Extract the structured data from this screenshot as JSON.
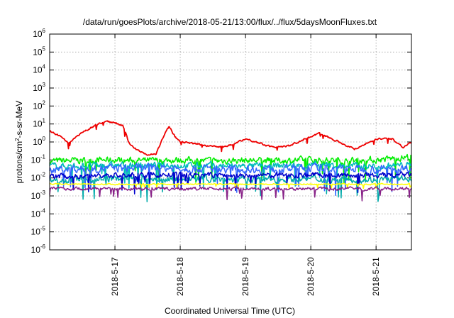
{
  "chart_data": {
    "type": "line",
    "title": "/data/run/goesPlots/archive/2018-05-21/13:00/flux/../flux/5daysMoonFluxes.txt",
    "xlabel": "Coordinated Universal Time (UTC)",
    "ylabel": {
      "prefix": "protons/cm",
      "sup": "2",
      "suffix": "-s-sr-MeV"
    },
    "yscale": "log",
    "ylim": [
      1e-06,
      1000000.0
    ],
    "yticks": [
      {
        "value": 1e-06,
        "base": "10",
        "exp": "-6"
      },
      {
        "value": 1e-05,
        "base": "10",
        "exp": "-5"
      },
      {
        "value": 0.0001,
        "base": "10",
        "exp": "-4"
      },
      {
        "value": 0.001,
        "base": "10",
        "exp": "-3"
      },
      {
        "value": 0.01,
        "base": "10",
        "exp": "-2"
      },
      {
        "value": 0.1,
        "base": "10",
        "exp": "-1"
      },
      {
        "value": 1,
        "base": "10",
        "exp": "0"
      },
      {
        "value": 10.0,
        "base": "10",
        "exp": "1"
      },
      {
        "value": 100.0,
        "base": "10",
        "exp": "2"
      },
      {
        "value": 1000.0,
        "base": "10",
        "exp": "3"
      },
      {
        "value": 10000.0,
        "base": "10",
        "exp": "4"
      },
      {
        "value": 100000.0,
        "base": "10",
        "exp": "5"
      },
      {
        "value": 1000000.0,
        "base": "10",
        "exp": "6"
      }
    ],
    "xlim": [
      "2018-05-16T00:00",
      "2018-05-21T13:00"
    ],
    "xticks": [
      {
        "value": "2018-05-17T00:00",
        "label": "2018-5-17"
      },
      {
        "value": "2018-05-18T00:00",
        "label": "2018-5-18"
      },
      {
        "value": "2018-05-19T00:00",
        "label": "2018-5-19"
      },
      {
        "value": "2018-05-20T00:00",
        "label": "2018-5-20"
      },
      {
        "value": "2018-05-21T00:00",
        "label": "2018-5-21"
      }
    ],
    "grid": true,
    "series": [
      {
        "color": "#00ee00",
        "noise": 0.3,
        "points": [
          [
            "2018-05-16T00:00",
            0.085
          ],
          [
            "2018-05-16T12:00",
            0.095
          ],
          [
            "2018-05-17T00:00",
            0.1
          ],
          [
            "2018-05-17T12:00",
            0.09
          ],
          [
            "2018-05-18T00:00",
            0.1
          ],
          [
            "2018-05-18T12:00",
            0.09
          ],
          [
            "2018-05-19T00:00",
            0.095
          ],
          [
            "2018-05-19T12:00",
            0.09
          ],
          [
            "2018-05-20T00:00",
            0.1
          ],
          [
            "2018-05-20T12:00",
            0.09
          ],
          [
            "2018-05-21T00:00",
            0.1
          ],
          [
            "2018-05-21T13:00",
            0.15
          ]
        ]
      },
      {
        "color": "#00bbbb",
        "noise": 0.3,
        "points": [
          [
            "2018-05-16T00:00",
            0.045
          ],
          [
            "2018-05-17T00:00",
            0.05
          ],
          [
            "2018-05-18T00:00",
            0.05
          ],
          [
            "2018-05-19T00:00",
            0.045
          ],
          [
            "2018-05-20T00:00",
            0.05
          ],
          [
            "2018-05-21T00:00",
            0.045
          ],
          [
            "2018-05-21T13:00",
            0.05
          ]
        ]
      },
      {
        "color": "#3366ff",
        "noise": 0.35,
        "points": [
          [
            "2018-05-16T00:00",
            0.03
          ],
          [
            "2018-05-17T00:00",
            0.035
          ],
          [
            "2018-05-18T00:00",
            0.035
          ],
          [
            "2018-05-19T00:00",
            0.03
          ],
          [
            "2018-05-20T00:00",
            0.035
          ],
          [
            "2018-05-21T00:00",
            0.03
          ],
          [
            "2018-05-21T13:00",
            0.035
          ]
        ]
      },
      {
        "color": "#00aaaa",
        "noise": 0.3,
        "points": [
          [
            "2018-05-16T00:00",
            0.008
          ],
          [
            "2018-05-17T00:00",
            0.009
          ],
          [
            "2018-05-18T00:00",
            0.009
          ],
          [
            "2018-05-19T00:00",
            0.008
          ],
          [
            "2018-05-20T00:00",
            0.009
          ],
          [
            "2018-05-21T00:00",
            0.008
          ],
          [
            "2018-05-21T13:00",
            0.009
          ]
        ]
      },
      {
        "color": "#0000cc",
        "noise": 0.25,
        "points": [
          [
            "2018-05-16T00:00",
            0.012
          ],
          [
            "2018-05-17T00:00",
            0.014
          ],
          [
            "2018-05-18T00:00",
            0.015
          ],
          [
            "2018-05-19T00:00",
            0.013
          ],
          [
            "2018-05-20T00:00",
            0.015
          ],
          [
            "2018-05-21T00:00",
            0.013
          ],
          [
            "2018-05-21T13:00",
            0.015
          ]
        ]
      },
      {
        "color": "#ffff00",
        "noise": 0.06,
        "points": [
          [
            "2018-05-16T00:00",
            0.0045
          ],
          [
            "2018-05-17T00:00",
            0.0045
          ],
          [
            "2018-05-18T00:00",
            0.0045
          ],
          [
            "2018-05-19T00:00",
            0.0045
          ],
          [
            "2018-05-20T00:00",
            0.0045
          ],
          [
            "2018-05-21T00:00",
            0.0045
          ],
          [
            "2018-05-21T13:00",
            0.0045
          ]
        ]
      },
      {
        "color": "#882288",
        "noise": 0.15,
        "points": [
          [
            "2018-05-16T00:00",
            0.0025
          ],
          [
            "2018-05-17T00:00",
            0.0025
          ],
          [
            "2018-05-18T00:00",
            0.0025
          ],
          [
            "2018-05-19T00:00",
            0.0025
          ],
          [
            "2018-05-20T00:00",
            0.0025
          ],
          [
            "2018-05-21T00:00",
            0.0025
          ],
          [
            "2018-05-21T13:00",
            0.0025
          ]
        ]
      },
      {
        "color": "#ee0000",
        "noise": 0.08,
        "points": [
          [
            "2018-05-16T00:00",
            4.0
          ],
          [
            "2018-05-16T04:00",
            2.0
          ],
          [
            "2018-05-16T07:00",
            0.8
          ],
          [
            "2018-05-16T10:00",
            2.0
          ],
          [
            "2018-05-16T14:00",
            5.0
          ],
          [
            "2018-05-16T18:00",
            10.0
          ],
          [
            "2018-05-16T21:00",
            14.0
          ],
          [
            "2018-05-17T00:00",
            12.0
          ],
          [
            "2018-05-17T03:00",
            8.0
          ],
          [
            "2018-05-17T05:00",
            1.0
          ],
          [
            "2018-05-17T08:00",
            0.35
          ],
          [
            "2018-05-17T12:00",
            0.2
          ],
          [
            "2018-05-17T15:00",
            0.2
          ],
          [
            "2018-05-17T17:00",
            1.0
          ],
          [
            "2018-05-17T19:00",
            5.0
          ],
          [
            "2018-05-17T20:00",
            7.0
          ],
          [
            "2018-05-17T22:00",
            2.0
          ],
          [
            "2018-05-18T00:00",
            1.0
          ],
          [
            "2018-05-18T08:00",
            0.7
          ],
          [
            "2018-05-18T16:00",
            0.5
          ],
          [
            "2018-05-19T00:00",
            1.5
          ],
          [
            "2018-05-19T06:00",
            0.8
          ],
          [
            "2018-05-19T10:00",
            0.5
          ],
          [
            "2018-05-19T16:00",
            0.6
          ],
          [
            "2018-05-19T22:00",
            1.5
          ],
          [
            "2018-05-20T03:00",
            3.0
          ],
          [
            "2018-05-20T08:00",
            1.5
          ],
          [
            "2018-05-20T16:00",
            0.4
          ],
          [
            "2018-05-21T00:00",
            1.5
          ],
          [
            "2018-05-21T06:00",
            1.5
          ],
          [
            "2018-05-21T10:00",
            0.5
          ],
          [
            "2018-05-21T13:00",
            1.0
          ]
        ]
      }
    ]
  }
}
